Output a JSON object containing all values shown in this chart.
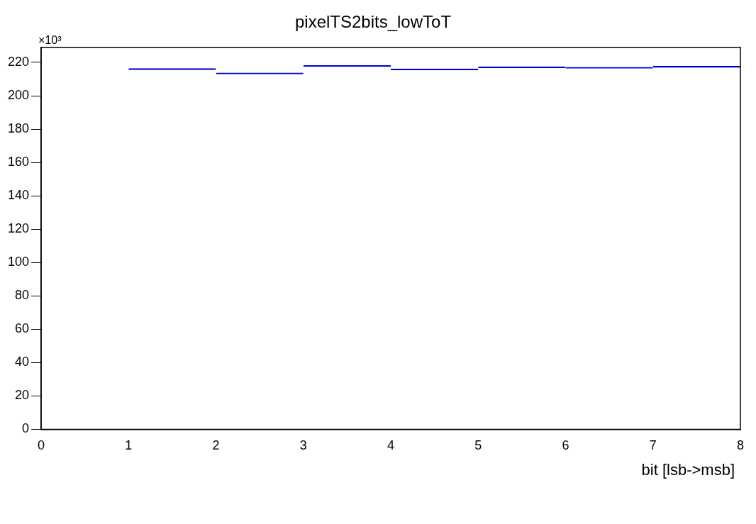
{
  "chart_data": {
    "type": "histogram",
    "title": "pixelTS2bits_lowToT",
    "xlabel": "bit [lsb->msb]",
    "annotations": [
      "×10³"
    ],
    "bins": [
      0,
      1,
      2,
      3,
      4,
      5,
      6,
      7,
      8
    ],
    "values": [
      0,
      216.3,
      213.7,
      218.2,
      216.1,
      217.4,
      217.1,
      217.7
    ],
    "color": "#0000cc",
    "xlim": [
      0,
      8
    ],
    "xticks": [
      0,
      1,
      2,
      3,
      4,
      5,
      6,
      7,
      8
    ],
    "ylim": [
      0,
      229
    ],
    "yticks": [
      0,
      20,
      40,
      60,
      80,
      100,
      120,
      140,
      160,
      180,
      200,
      220
    ],
    "grid": false,
    "legend": false
  }
}
